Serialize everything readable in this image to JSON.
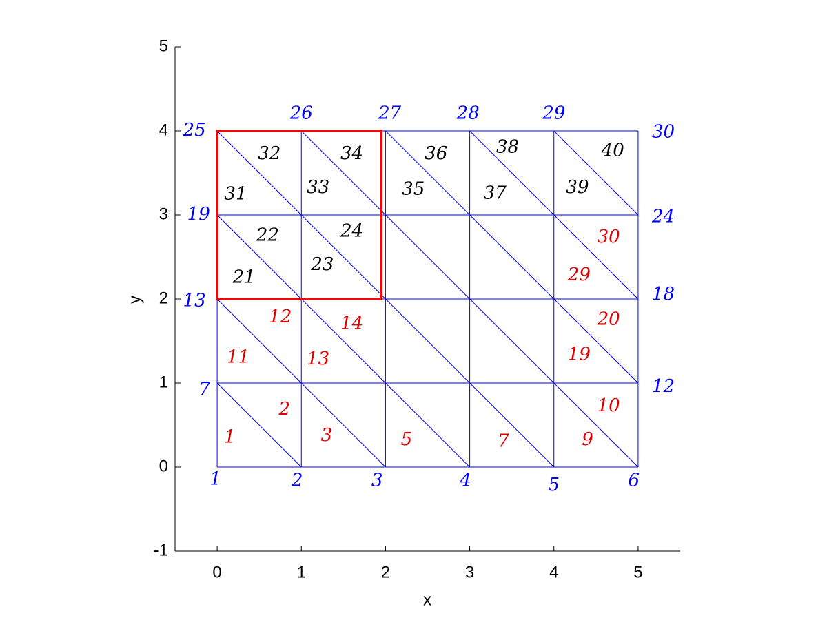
{
  "chart_data": {
    "type": "mesh",
    "xlabel": "x",
    "ylabel": "y",
    "xlim": [
      -0.5,
      5.5
    ],
    "ylim": [
      -1,
      5
    ],
    "xticks": [
      0,
      1,
      2,
      3,
      4,
      5
    ],
    "yticks": [
      -1,
      0,
      1,
      2,
      3,
      4,
      5
    ],
    "nodes_x": [
      0,
      1,
      2,
      3,
      4,
      5
    ],
    "nodes_y": [
      0,
      1,
      2,
      3,
      4
    ],
    "color": "#0000ff",
    "highlight": {
      "x": [
        0,
        1.95
      ],
      "y": [
        2,
        4
      ],
      "color": "#ff0000"
    },
    "annotations": [
      {
        "text": "1",
        "x": -0.02,
        "y": -0.15,
        "color": "#0000ff"
      },
      {
        "text": "2",
        "x": 0.95,
        "y": -0.17,
        "color": "#0000ff"
      },
      {
        "text": "3",
        "x": 1.9,
        "y": -0.17,
        "color": "#0000ff"
      },
      {
        "text": "4",
        "x": 2.95,
        "y": -0.17,
        "color": "#0000ff"
      },
      {
        "text": "5",
        "x": 4.0,
        "y": -0.22,
        "color": "#0000ff"
      },
      {
        "text": "6",
        "x": 4.95,
        "y": -0.17,
        "color": "#0000ff"
      },
      {
        "text": "7",
        "x": -0.15,
        "y": 0.92,
        "color": "#0000ff"
      },
      {
        "text": "12",
        "x": 5.3,
        "y": 0.95,
        "color": "#0000ff"
      },
      {
        "text": "13",
        "x": -0.27,
        "y": 1.97,
        "color": "#0000ff"
      },
      {
        "text": "18",
        "x": 5.3,
        "y": 2.05,
        "color": "#0000ff"
      },
      {
        "text": "19",
        "x": -0.22,
        "y": 3.0,
        "color": "#0000ff"
      },
      {
        "text": "24",
        "x": 5.3,
        "y": 2.97,
        "color": "#0000ff"
      },
      {
        "text": "25",
        "x": -0.27,
        "y": 4.0,
        "color": "#0000ff"
      },
      {
        "text": "26",
        "x": 1.0,
        "y": 4.2,
        "color": "#0000ff"
      },
      {
        "text": "27",
        "x": 2.05,
        "y": 4.2,
        "color": "#0000ff"
      },
      {
        "text": "28",
        "x": 2.98,
        "y": 4.2,
        "color": "#0000ff"
      },
      {
        "text": "29",
        "x": 4.0,
        "y": 4.2,
        "color": "#0000ff"
      },
      {
        "text": "30",
        "x": 5.3,
        "y": 3.98,
        "color": "#0000ff"
      },
      {
        "text": "1",
        "x": 0.15,
        "y": 0.35,
        "color": "#dd0000"
      },
      {
        "text": "2",
        "x": 0.8,
        "y": 0.68,
        "color": "#dd0000"
      },
      {
        "text": "3",
        "x": 1.3,
        "y": 0.37,
        "color": "#dd0000"
      },
      {
        "text": "5",
        "x": 2.25,
        "y": 0.32,
        "color": "#dd0000"
      },
      {
        "text": "7",
        "x": 3.4,
        "y": 0.3,
        "color": "#dd0000"
      },
      {
        "text": "9",
        "x": 4.4,
        "y": 0.32,
        "color": "#dd0000"
      },
      {
        "text": "10",
        "x": 4.65,
        "y": 0.72,
        "color": "#dd0000"
      },
      {
        "text": "11",
        "x": 0.25,
        "y": 1.3,
        "color": "#dd0000"
      },
      {
        "text": "12",
        "x": 0.75,
        "y": 1.78,
        "color": "#dd0000"
      },
      {
        "text": "13",
        "x": 1.2,
        "y": 1.28,
        "color": "#dd0000"
      },
      {
        "text": "14",
        "x": 1.6,
        "y": 1.7,
        "color": "#dd0000"
      },
      {
        "text": "19",
        "x": 4.3,
        "y": 1.33,
        "color": "#dd0000"
      },
      {
        "text": "20",
        "x": 4.65,
        "y": 1.75,
        "color": "#dd0000"
      },
      {
        "text": "29",
        "x": 4.3,
        "y": 2.28,
        "color": "#dd0000"
      },
      {
        "text": "30",
        "x": 4.65,
        "y": 2.73,
        "color": "#dd0000"
      },
      {
        "text": "21",
        "x": 0.32,
        "y": 2.25,
        "color": "#000000"
      },
      {
        "text": "22",
        "x": 0.6,
        "y": 2.75,
        "color": "#000000"
      },
      {
        "text": "23",
        "x": 1.25,
        "y": 2.4,
        "color": "#000000"
      },
      {
        "text": "24",
        "x": 1.6,
        "y": 2.8,
        "color": "#000000"
      },
      {
        "text": "31",
        "x": 0.22,
        "y": 3.24,
        "color": "#000000"
      },
      {
        "text": "32",
        "x": 0.62,
        "y": 3.72,
        "color": "#000000"
      },
      {
        "text": "33",
        "x": 1.2,
        "y": 3.32,
        "color": "#000000"
      },
      {
        "text": "34",
        "x": 1.6,
        "y": 3.72,
        "color": "#000000"
      },
      {
        "text": "35",
        "x": 2.33,
        "y": 3.3,
        "color": "#000000"
      },
      {
        "text": "36",
        "x": 2.6,
        "y": 3.72,
        "color": "#000000"
      },
      {
        "text": "37",
        "x": 3.3,
        "y": 3.25,
        "color": "#000000"
      },
      {
        "text": "38",
        "x": 3.45,
        "y": 3.8,
        "color": "#000000"
      },
      {
        "text": "39",
        "x": 4.28,
        "y": 3.32,
        "color": "#000000"
      },
      {
        "text": "40",
        "x": 4.7,
        "y": 3.76,
        "color": "#000000"
      }
    ]
  }
}
